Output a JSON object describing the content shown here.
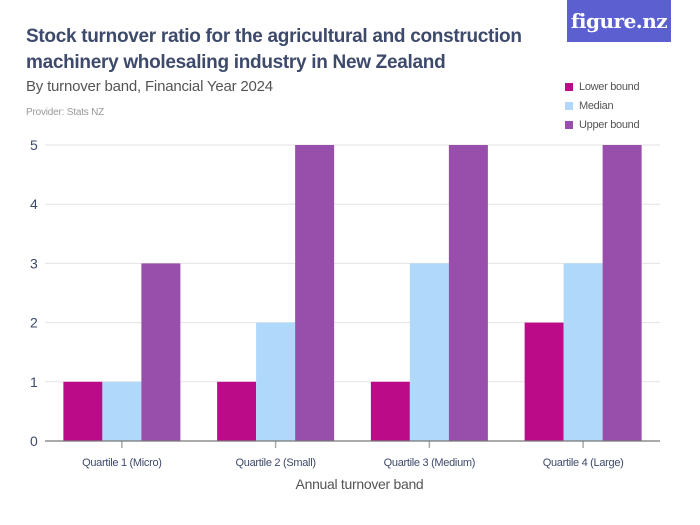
{
  "header": {
    "title": "Stock turnover ratio for the agricultural and construction machinery wholesaling industry in New Zealand",
    "subtitle": "By turnover band, Financial Year 2024",
    "provider": "Provider: Stats NZ",
    "logo_text": "figure.nz",
    "logo_color": "#5b5fcf"
  },
  "chart_data": {
    "type": "bar",
    "title": "Stock turnover ratio for the agricultural and construction machinery wholesaling industry in New Zealand",
    "subtitle": "By turnover band, Financial Year 2024",
    "xlabel": "Annual turnover band",
    "ylabel": "",
    "ylim": [
      0,
      5
    ],
    "yticks": [
      0,
      1,
      2,
      3,
      4,
      5
    ],
    "grid": true,
    "legend_position": "top-right",
    "categories": [
      "Quartile 1 (Micro)",
      "Quartile 2 (Small)",
      "Quartile 3 (Medium)",
      "Quartile 4 (Large)"
    ],
    "series": [
      {
        "name": "Lower bound",
        "color": "#bb0b88",
        "values": [
          1,
          1,
          1,
          2
        ]
      },
      {
        "name": "Median",
        "color": "#b0d8fb",
        "values": [
          1,
          2,
          3,
          3
        ]
      },
      {
        "name": "Upper bound",
        "color": "#984fab",
        "values": [
          3,
          5,
          5,
          5
        ]
      }
    ]
  }
}
